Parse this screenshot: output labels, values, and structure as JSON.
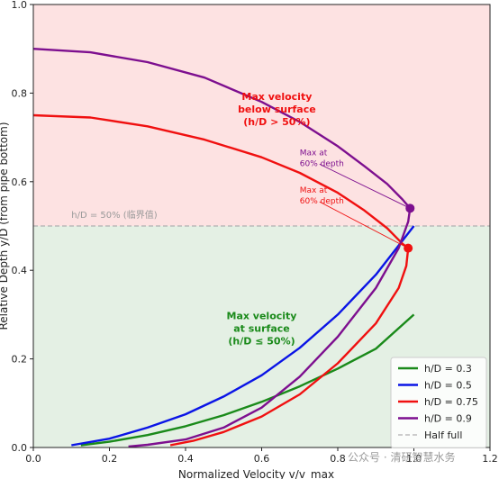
{
  "chart_data": {
    "type": "line",
    "xlabel": "Normalized Velocity v/v_max",
    "ylabel": "Relative Depth y/D (from pipe bottom)",
    "xlim": [
      0,
      1.2
    ],
    "ylim": [
      0,
      1.0
    ],
    "xticks": [
      0.0,
      0.2,
      0.4,
      0.6,
      0.8,
      1.0,
      1.2
    ],
    "yticks": [
      0.0,
      0.2,
      0.4,
      0.6,
      0.8,
      1.0
    ],
    "regions": [
      {
        "name": "above-half",
        "y": [
          0.5,
          1.0
        ],
        "color": "#fde2e2"
      },
      {
        "name": "below-half",
        "y": [
          0.0,
          0.5
        ],
        "color": "#e4f0e4"
      }
    ],
    "reference_line": {
      "y": 0.5,
      "label": "h/D = 50% (临界值)",
      "legend": "Half full",
      "color": "#b0b0b0"
    },
    "series": [
      {
        "name": "h/D = 0.3",
        "color": "#1a8a1a",
        "x": [
          0.125,
          0.2,
          0.3,
          0.4,
          0.5,
          0.6,
          0.7,
          0.8,
          0.9,
          1.0
        ],
        "y": [
          0.005,
          0.013,
          0.028,
          0.048,
          0.073,
          0.103,
          0.138,
          0.178,
          0.223,
          0.3
        ]
      },
      {
        "name": "h/D = 0.5",
        "color": "#0a14e6",
        "x": [
          0.1,
          0.2,
          0.3,
          0.4,
          0.5,
          0.6,
          0.7,
          0.8,
          0.9,
          1.0
        ],
        "y": [
          0.005,
          0.02,
          0.045,
          0.075,
          0.115,
          0.163,
          0.225,
          0.3,
          0.39,
          0.5
        ]
      },
      {
        "name": "h/D = 0.75",
        "color": "#f01010",
        "x": [
          0.0,
          0.15,
          0.3,
          0.45,
          0.6,
          0.7,
          0.8,
          0.87,
          0.93,
          0.97,
          0.985,
          0.98,
          0.96,
          0.9,
          0.8,
          0.7,
          0.6,
          0.5,
          0.42,
          0.36
        ],
        "y": [
          0.75,
          0.745,
          0.725,
          0.695,
          0.655,
          0.62,
          0.575,
          0.535,
          0.495,
          0.46,
          0.45,
          0.41,
          0.36,
          0.28,
          0.19,
          0.12,
          0.07,
          0.035,
          0.015,
          0.005
        ]
      },
      {
        "name": "h/D = 0.9",
        "color": "#7d0f8f",
        "x": [
          0.0,
          0.15,
          0.3,
          0.45,
          0.6,
          0.7,
          0.8,
          0.87,
          0.93,
          0.97,
          0.99,
          0.985,
          0.96,
          0.9,
          0.8,
          0.7,
          0.6,
          0.5,
          0.4,
          0.3,
          0.25
        ],
        "y": [
          0.9,
          0.892,
          0.87,
          0.835,
          0.78,
          0.735,
          0.68,
          0.635,
          0.595,
          0.56,
          0.54,
          0.51,
          0.45,
          0.36,
          0.25,
          0.16,
          0.09,
          0.045,
          0.018,
          0.006,
          0.002
        ]
      }
    ],
    "markers": [
      {
        "x": 0.99,
        "y": 0.54,
        "color": "#7d0f8f"
      },
      {
        "x": 0.985,
        "y": 0.45,
        "color": "#f01010"
      }
    ],
    "annotations": [
      {
        "lines": [
          "Max velocity",
          "below surface",
          "(h/D > 50%)"
        ],
        "x": 0.64,
        "y": 0.785,
        "color": "#f01010",
        "bold": true,
        "size": 11
      },
      {
        "lines": [
          "Max velocity",
          "at surface",
          "(h/D ≤ 50%)"
        ],
        "x": 0.6,
        "y": 0.29,
        "color": "#1a8a1a",
        "bold": true,
        "size": 11
      },
      {
        "lines": [
          "Max at",
          "60% depth"
        ],
        "x": 0.7,
        "y": 0.66,
        "color": "#7d0f8f",
        "bold": false,
        "size": 9,
        "arrow_to": [
          0.99,
          0.54
        ]
      },
      {
        "lines": [
          "Max at",
          "60% depth"
        ],
        "x": 0.7,
        "y": 0.575,
        "color": "#f01010",
        "bold": false,
        "size": 9,
        "arrow_to": [
          0.985,
          0.45
        ]
      }
    ],
    "legend": {
      "position": "bottom-right",
      "entries": [
        "h/D = 0.3",
        "h/D = 0.5",
        "h/D = 0.75",
        "h/D = 0.9",
        "Half full"
      ]
    },
    "grid": false
  },
  "watermark": "公众号 · 清研智慧水务"
}
